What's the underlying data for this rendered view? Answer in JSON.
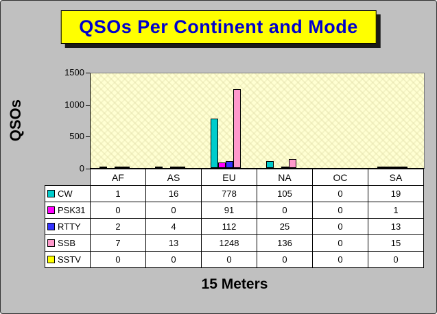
{
  "title": "QSOs Per Continent and Mode",
  "chart_data": {
    "type": "bar",
    "title": "QSOs Per Continent and Mode",
    "xlabel": "15 Meters",
    "ylabel": "QSOs",
    "ylim": [
      0,
      1500
    ],
    "y_ticks": [
      1500,
      1000,
      500,
      0
    ],
    "grid": false,
    "legend_position": "table-left",
    "categories": [
      "AF",
      "AS",
      "EU",
      "NA",
      "OC",
      "SA"
    ],
    "series": [
      {
        "name": "CW",
        "color": "#00CCCC",
        "values": [
          1,
          16,
          778,
          105,
          0,
          19
        ]
      },
      {
        "name": "PSK31",
        "color": "#FF00FF",
        "values": [
          0,
          0,
          91,
          0,
          0,
          1
        ]
      },
      {
        "name": "RTTY",
        "color": "#3333FF",
        "values": [
          2,
          4,
          112,
          25,
          0,
          13
        ]
      },
      {
        "name": "SSB",
        "color": "#FF99CC",
        "values": [
          7,
          13,
          1248,
          136,
          0,
          15
        ]
      },
      {
        "name": "SSTV",
        "color": "#FFFF00",
        "values": [
          0,
          0,
          0,
          0,
          0,
          0
        ]
      }
    ]
  }
}
